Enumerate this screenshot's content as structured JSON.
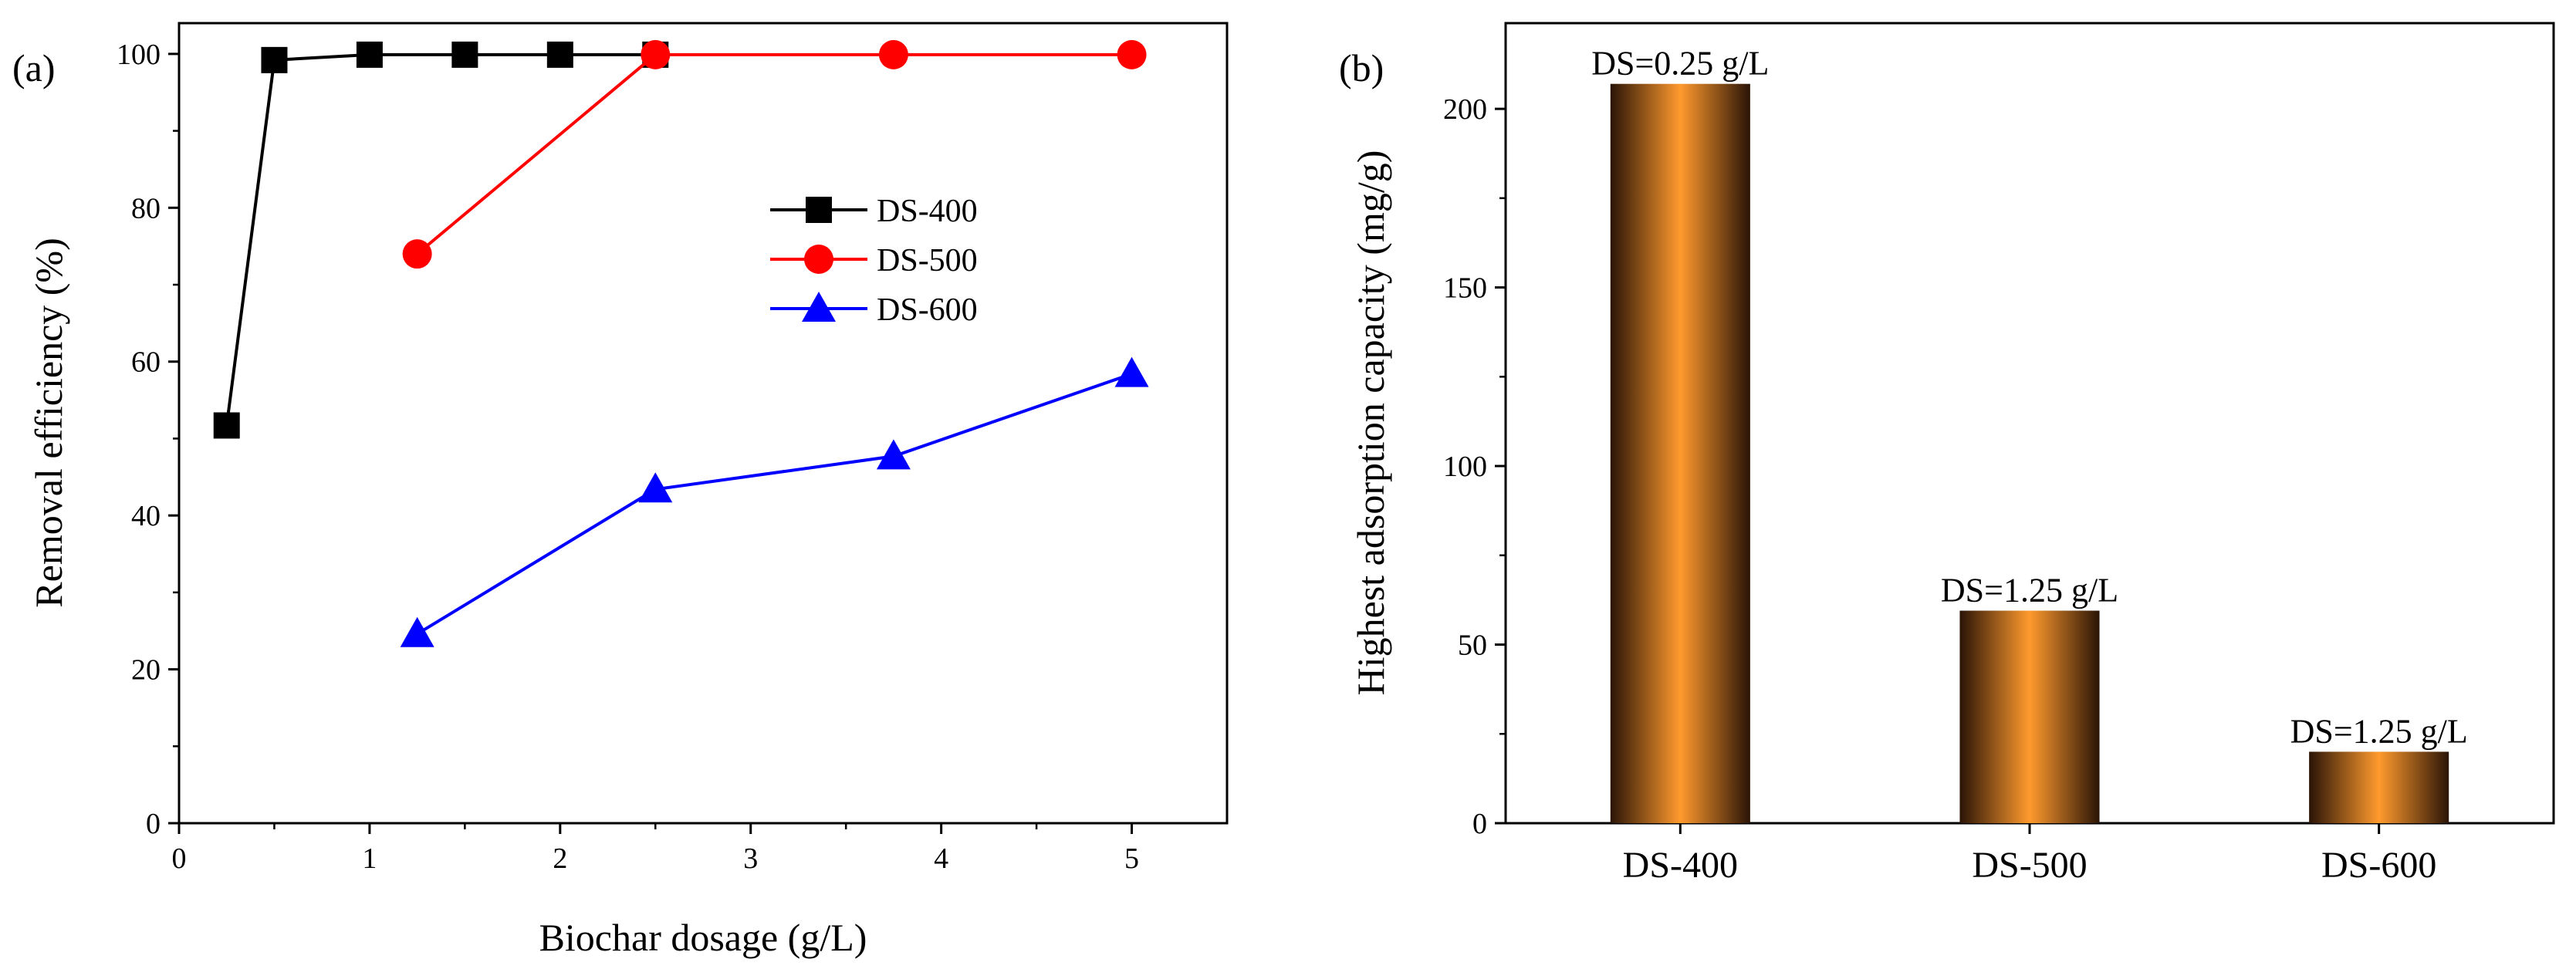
{
  "chart_data": [
    {
      "panel_label": "(a)",
      "type": "line",
      "xlabel": "Biochar dosage (g/L)",
      "ylabel": "Removal efficiency (%)",
      "xlim": [
        0,
        5.5
      ],
      "ylim": [
        0,
        104
      ],
      "xticks": [
        0,
        1,
        2,
        3,
        4,
        5
      ],
      "yticks": [
        0,
        20,
        40,
        60,
        80,
        100
      ],
      "grid": false,
      "legend_position": "center-right",
      "series": [
        {
          "name": "DS-400",
          "color": "#000000",
          "marker": "square",
          "x": [
            0.25,
            0.5,
            1.0,
            1.5,
            2.0,
            2.5
          ],
          "y": [
            51.7,
            99.2,
            99.9,
            99.9,
            99.9,
            99.9
          ]
        },
        {
          "name": "DS-500",
          "color": "#ff0000",
          "marker": "circle",
          "x": [
            1.25,
            2.5,
            3.75,
            5.0
          ],
          "y": [
            74.0,
            99.9,
            99.9,
            99.9
          ]
        },
        {
          "name": "DS-600",
          "color": "#0000ff",
          "marker": "triangle",
          "x": [
            1.25,
            2.5,
            3.75,
            5.0
          ],
          "y": [
            24.6,
            43.4,
            47.7,
            58.4
          ]
        }
      ]
    },
    {
      "panel_label": "(b)",
      "type": "bar",
      "xlabel": "",
      "ylabel": "Highest adsorption capacity (mg/g)",
      "ylim": [
        0,
        224
      ],
      "yticks": [
        0,
        50,
        100,
        150,
        200
      ],
      "grid": false,
      "categories": [
        "DS-400",
        "DS-500",
        "DS-600"
      ],
      "values": [
        207.0,
        59.5,
        20.0
      ],
      "annotations": [
        "DS=0.25 g/L",
        "DS=1.25 g/L",
        "DS=1.25 g/L"
      ],
      "bar_color_edge": "#2a1406",
      "bar_color_center": "#ff9a2e"
    }
  ]
}
